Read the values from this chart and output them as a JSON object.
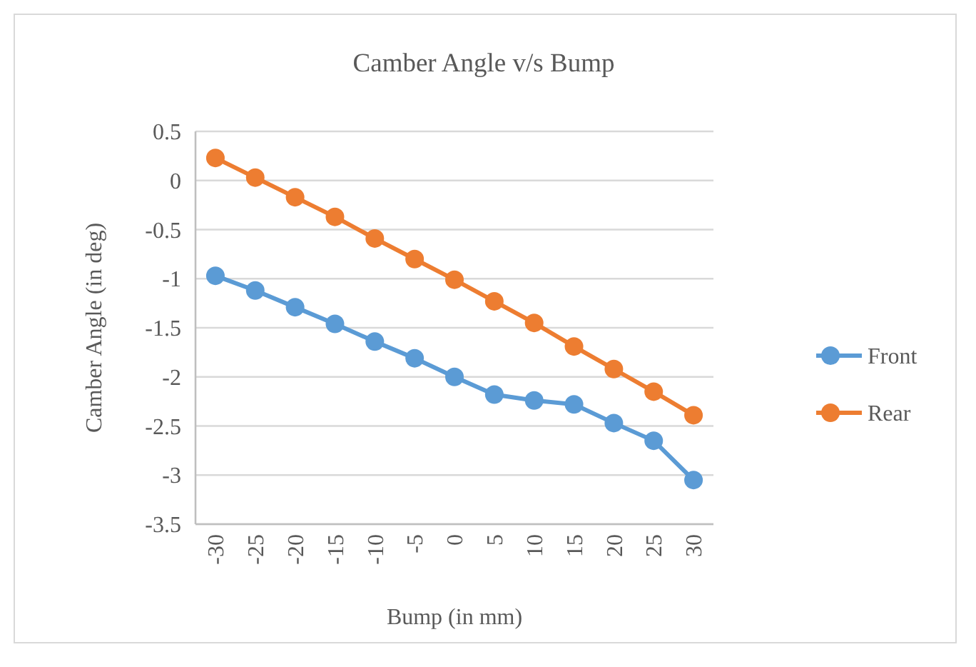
{
  "chart_data": {
    "type": "line",
    "title": "Camber Angle v/s Bump",
    "xlabel": "Bump (in mm)",
    "ylabel": "Camber Angle (in deg)",
    "categories": [
      "-30",
      "-25",
      "-20",
      "-15",
      "-10",
      "-5",
      "0",
      "5",
      "10",
      "15",
      "20",
      "25",
      "30"
    ],
    "series": [
      {
        "name": "Front",
        "color": "#5b9bd5",
        "values": [
          -0.97,
          -1.12,
          -1.29,
          -1.46,
          -1.64,
          -1.81,
          -2.0,
          -2.18,
          -2.24,
          -2.28,
          -2.47,
          -2.65,
          -3.05
        ]
      },
      {
        "name": "Rear",
        "color": "#ed7d31",
        "values": [
          0.23,
          0.03,
          -0.17,
          -0.37,
          -0.59,
          -0.8,
          -1.01,
          -1.23,
          -1.45,
          -1.69,
          -1.92,
          -2.15,
          -2.39
        ]
      }
    ],
    "ylim": [
      -3.5,
      0.5
    ],
    "yticks": [
      0.5,
      0,
      -0.5,
      -1,
      -1.5,
      -2,
      -2.5,
      -3,
      -3.5
    ],
    "grid": "y",
    "legend": "right",
    "marker": "circle",
    "line_style": "solid"
  }
}
